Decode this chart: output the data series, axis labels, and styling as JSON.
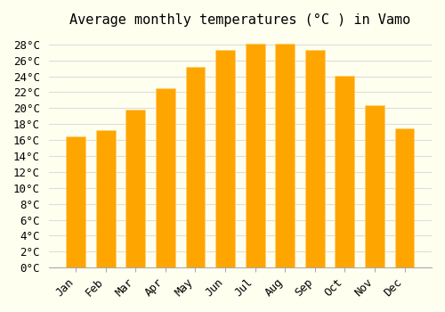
{
  "title": "Average monthly temperatures (°C ) in Vamo",
  "months": [
    "Jan",
    "Feb",
    "Mar",
    "Apr",
    "May",
    "Jun",
    "Jul",
    "Aug",
    "Sep",
    "Oct",
    "Nov",
    "Dec"
  ],
  "values": [
    16.5,
    17.2,
    19.8,
    22.5,
    25.2,
    27.3,
    28.1,
    28.1,
    27.3,
    24.1,
    20.4,
    17.5
  ],
  "bar_color_face": "#FFA500",
  "bar_color_edge": "#FFD070",
  "ylim": [
    0,
    29
  ],
  "ytick_step": 2,
  "background_color": "#FFFFF0",
  "grid_color": "#DDDDDD",
  "title_fontsize": 11,
  "tick_fontsize": 9,
  "font_family": "monospace"
}
